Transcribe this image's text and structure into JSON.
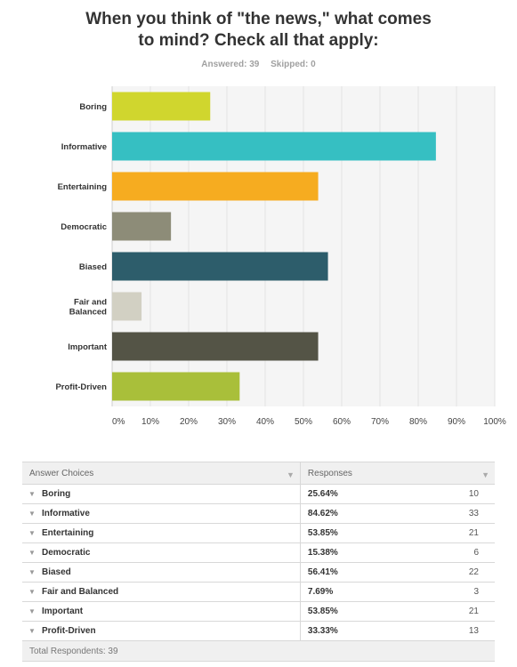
{
  "title_line1": "When you think of \"the news,\" what comes",
  "title_line2": "to mind? Check all that apply:",
  "answered_text": "Answered: 39",
  "skipped_text": "Skipped: 0",
  "chart_data": {
    "type": "bar",
    "orientation": "horizontal",
    "categories": [
      "Boring",
      "Informative",
      "Entertaining",
      "Democratic",
      "Biased",
      "Fair and Balanced",
      "Important",
      "Profit-Driven"
    ],
    "category_lines": [
      [
        "Boring"
      ],
      [
        "Informative"
      ],
      [
        "Entertaining"
      ],
      [
        "Democratic"
      ],
      [
        "Biased"
      ],
      [
        "Fair and",
        "Balanced"
      ],
      [
        "Important"
      ],
      [
        "Profit-Driven"
      ]
    ],
    "values": [
      25.64,
      84.62,
      53.85,
      15.38,
      56.41,
      7.69,
      53.85,
      33.33
    ],
    "colors": [
      "#d0d62e",
      "#36bfc2",
      "#f6ac20",
      "#8d8c78",
      "#2d5d6b",
      "#d2d0c3",
      "#545446",
      "#a9bf3a"
    ],
    "xlim": [
      0,
      100
    ],
    "x_ticks": [
      "0%",
      "10%",
      "20%",
      "30%",
      "40%",
      "50%",
      "60%",
      "70%",
      "80%",
      "90%",
      "100%"
    ],
    "grid": true
  },
  "table": {
    "header_choice": "Answer Choices",
    "header_responses": "Responses",
    "rows": [
      {
        "choice": "Boring",
        "pct": "25.64%",
        "count": "10"
      },
      {
        "choice": "Informative",
        "pct": "84.62%",
        "count": "33"
      },
      {
        "choice": "Entertaining",
        "pct": "53.85%",
        "count": "21"
      },
      {
        "choice": "Democratic",
        "pct": "15.38%",
        "count": "6"
      },
      {
        "choice": "Biased",
        "pct": "56.41%",
        "count": "22"
      },
      {
        "choice": "Fair and Balanced",
        "pct": "7.69%",
        "count": "3"
      },
      {
        "choice": "Important",
        "pct": "53.85%",
        "count": "21"
      },
      {
        "choice": "Profit-Driven",
        "pct": "33.33%",
        "count": "13"
      }
    ],
    "footer": "Total Respondents: 39"
  }
}
